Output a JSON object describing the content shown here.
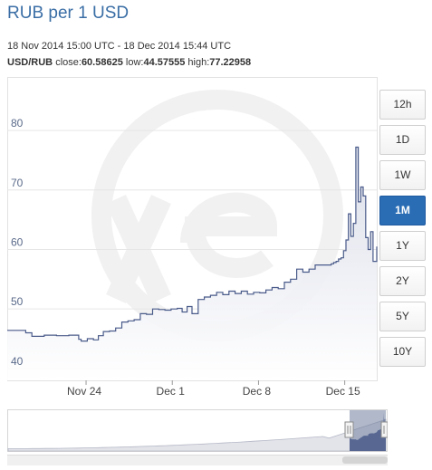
{
  "title": "RUB per 1 USD",
  "date_range": "18 Nov 2014 15:00 UTC - 18 Dec 2014 15:44 UTC",
  "stats": {
    "pair": "USD/RUB",
    "close_label": "close:",
    "close": "60.58625",
    "low_label": "low:",
    "low": "44.57555",
    "high_label": "high:",
    "high": "77.22958"
  },
  "range_buttons": [
    {
      "label": "12h",
      "active": false
    },
    {
      "label": "1D",
      "active": false
    },
    {
      "label": "1W",
      "active": false
    },
    {
      "label": "1M",
      "active": true
    },
    {
      "label": "1Y",
      "active": false
    },
    {
      "label": "2Y",
      "active": false
    },
    {
      "label": "5Y",
      "active": false
    },
    {
      "label": "10Y",
      "active": false
    }
  ],
  "colors": {
    "title": "#3a6ea5",
    "line": "#4a5b8a",
    "area_top": "#e4e6ee",
    "area_bottom": "#ffffff",
    "active_button": "#2a6db5",
    "navigator_fill": "#6f7d9c"
  },
  "chart_data": {
    "type": "area",
    "ylim": [
      38,
      89
    ],
    "y_ticks": [
      40,
      50,
      60,
      70,
      80
    ],
    "x_tick_labels": [
      "Nov 24",
      "Dec 1",
      "Dec 8",
      "Dec 15"
    ],
    "x_tick_days": [
      6.4,
      13.4,
      20.4,
      27.4
    ],
    "x_range": [
      0,
      30
    ],
    "grid": true,
    "series": [
      {
        "x": [
          0,
          0.8,
          1.5,
          2.0,
          3.0,
          4.0,
          5.0,
          5.8,
          6.0,
          6.5,
          7.0,
          7.4,
          7.8,
          8.3,
          8.8,
          9.3,
          9.8,
          10.3,
          10.8,
          11.3,
          11.8,
          12.3,
          12.8,
          13.3,
          13.8,
          14.2,
          14.6,
          15.0,
          15.5,
          16.0,
          16.5,
          17.0,
          17.5,
          18.0,
          18.5,
          19.0,
          19.5,
          20.0,
          20.5,
          21.0,
          21.5,
          22.0,
          22.5,
          23.0,
          23.5,
          24.0,
          24.5,
          25.0,
          25.3,
          25.6,
          25.9,
          26.1,
          26.3,
          26.5,
          26.7,
          26.9,
          27.1,
          27.3,
          27.5,
          27.7,
          27.9,
          28.1,
          28.3,
          28.5,
          28.7,
          28.9,
          29.1,
          29.3,
          29.5,
          29.7,
          30.0
        ],
        "y": [
          46.4,
          46.4,
          46.0,
          45.4,
          45.6,
          45.5,
          45.6,
          44.9,
          44.6,
          45.0,
          44.8,
          45.5,
          46.2,
          46.3,
          46.8,
          47.8,
          48.0,
          48.2,
          49.2,
          49.1,
          50.0,
          49.9,
          49.8,
          50.0,
          50.1,
          49.5,
          50.4,
          49.2,
          51.6,
          52.0,
          52.3,
          52.8,
          52.4,
          53.0,
          52.6,
          53.0,
          52.5,
          52.8,
          52.7,
          53.2,
          53.6,
          53.4,
          54.5,
          55.0,
          56.7,
          56.2,
          56.7,
          57.4,
          57.4,
          57.4,
          57.4,
          57.4,
          57.6,
          57.8,
          58.0,
          58.4,
          58.6,
          59.8,
          61.6,
          66.0,
          62.2,
          64.4,
          77.2,
          68.0,
          70.5,
          69.0,
          62.0,
          60.0,
          63.0,
          58.0,
          60.5
        ]
      }
    ]
  }
}
